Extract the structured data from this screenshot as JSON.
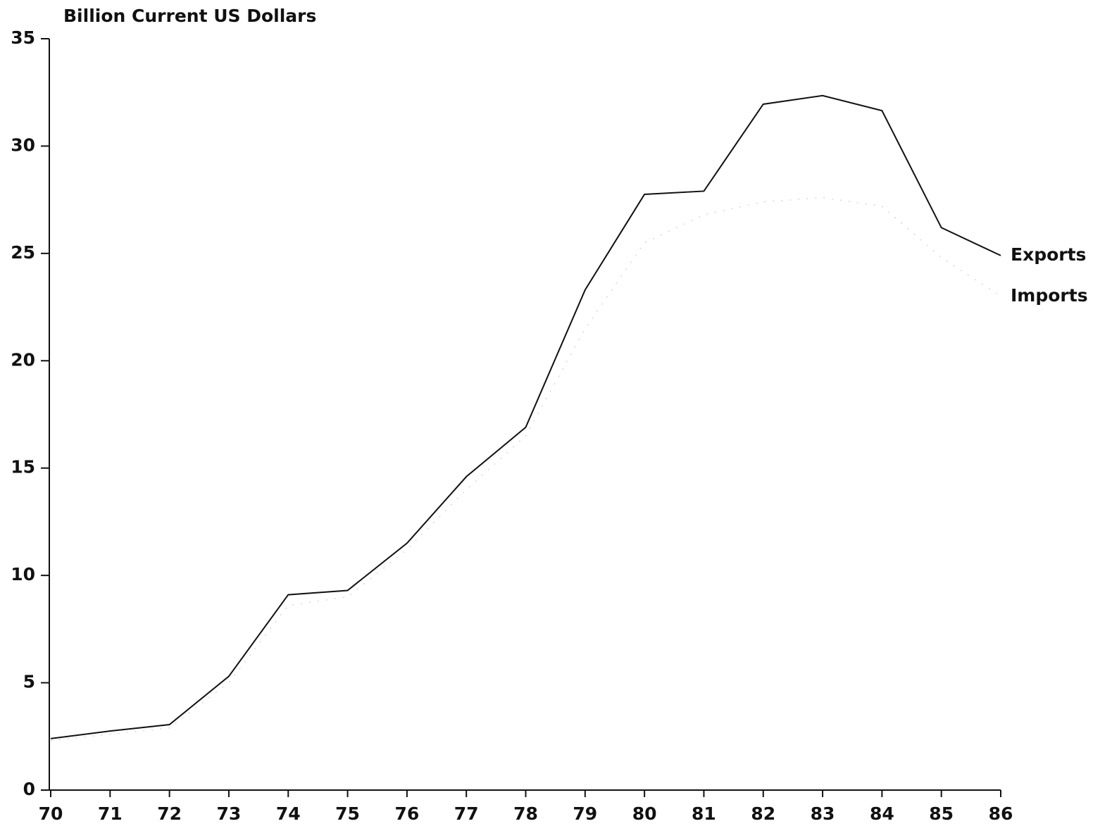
{
  "chart_data": {
    "type": "line",
    "title": "Billion Current US Dollars",
    "categories": [
      "70",
      "71",
      "72",
      "73",
      "74",
      "75",
      "76",
      "77",
      "78",
      "79",
      "80",
      "81",
      "82",
      "83",
      "84",
      "85",
      "86"
    ],
    "series": [
      {
        "name": "Exports",
        "color": "#111111",
        "values": [
          2.4,
          2.75,
          3.05,
          5.3,
          9.1,
          9.3,
          11.5,
          14.6,
          16.9,
          23.3,
          27.75,
          27.9,
          31.95,
          32.35,
          31.65,
          26.2,
          24.9
        ]
      },
      {
        "name": "Imports",
        "color": "#d8d8d8",
        "values": [
          2.3,
          2.6,
          2.9,
          5.0,
          8.6,
          9.0,
          11.2,
          14.0,
          16.5,
          21.5,
          25.5,
          26.8,
          27.4,
          27.6,
          27.2,
          24.8,
          23.0
        ]
      }
    ],
    "ylim": [
      0,
      35
    ],
    "yticks": [
      0,
      5,
      10,
      15,
      20,
      25,
      30,
      35
    ],
    "grid": false
  }
}
